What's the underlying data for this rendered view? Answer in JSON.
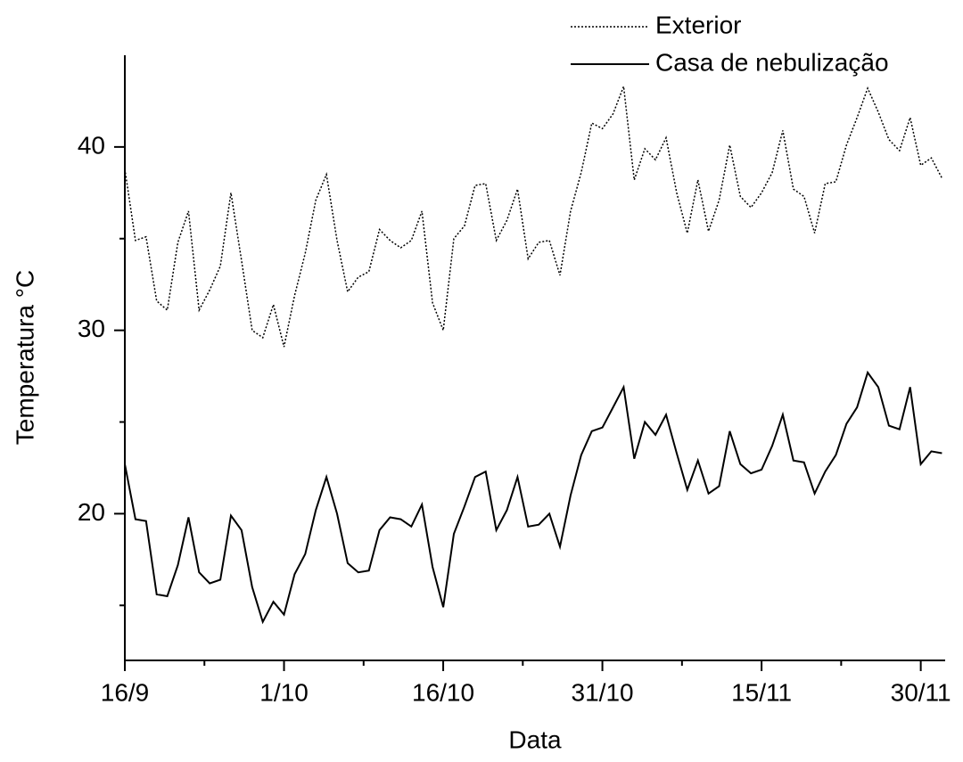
{
  "chart_data": {
    "type": "line",
    "x_label": "Data",
    "y_label": "Temperatura °C",
    "x": [
      0,
      1,
      2,
      3,
      4,
      5,
      6,
      7,
      8,
      9,
      10,
      11,
      12,
      13,
      14,
      15,
      16,
      17,
      18,
      19,
      20,
      21,
      22,
      23,
      24,
      25,
      26,
      27,
      28,
      29,
      30,
      31,
      32,
      33,
      34,
      35,
      36,
      37,
      38,
      39,
      40,
      41,
      42,
      43,
      44,
      45,
      46,
      47,
      48,
      49,
      50,
      51,
      52,
      53,
      54,
      55,
      56,
      57,
      58,
      59,
      60,
      61,
      62,
      63,
      64,
      65,
      66,
      67,
      68,
      69,
      70,
      71,
      72,
      73,
      74,
      75,
      76,
      77
    ],
    "series": [
      {
        "name": "Exterior",
        "color": "#000000",
        "dash": "dotted",
        "values": [
          38.8,
          34.9,
          35.1,
          31.6,
          31.1,
          34.8,
          36.5,
          31.1,
          32.2,
          33.5,
          37.5,
          33.8,
          30.0,
          29.6,
          31.4,
          29.1,
          31.9,
          34.2,
          37.1,
          38.5,
          34.9,
          32.1,
          32.9,
          33.2,
          35.5,
          34.9,
          34.5,
          34.9,
          36.5,
          31.5,
          30.0,
          35.0,
          35.7,
          37.9,
          38.0,
          34.9,
          36.0,
          37.7,
          33.9,
          34.8,
          34.9,
          33.0,
          36.5,
          38.6,
          41.3,
          41.0,
          41.8,
          43.3,
          38.2,
          39.9,
          39.3,
          40.5,
          37.5,
          35.3,
          38.2,
          35.4,
          37.1,
          40.1,
          37.3,
          36.7,
          37.5,
          38.6,
          40.9,
          37.7,
          37.3,
          35.3,
          38.0,
          38.1,
          40.1,
          41.6,
          43.2,
          41.9,
          40.4,
          39.8,
          41.6,
          39.0,
          39.4,
          38.3
        ]
      },
      {
        "name": "Casa de nebulização",
        "color": "#000000",
        "dash": "solid",
        "values": [
          22.7,
          19.7,
          19.6,
          15.6,
          15.5,
          17.2,
          19.8,
          16.8,
          16.2,
          16.4,
          19.9,
          19.1,
          16.0,
          14.1,
          15.2,
          14.5,
          16.7,
          17.8,
          20.2,
          22.0,
          20.0,
          17.3,
          16.8,
          16.9,
          19.1,
          19.8,
          19.7,
          19.3,
          20.5,
          17.1,
          14.9,
          18.9,
          20.4,
          22.0,
          22.3,
          19.1,
          20.2,
          22.0,
          19.3,
          19.4,
          20.0,
          18.2,
          21.0,
          23.2,
          24.5,
          24.7,
          25.8,
          26.9,
          23.0,
          25.0,
          24.3,
          25.4,
          23.3,
          21.3,
          22.9,
          21.1,
          21.5,
          24.5,
          22.7,
          22.2,
          22.4,
          23.7,
          25.4,
          22.9,
          22.8,
          21.1,
          22.3,
          23.2,
          24.9,
          25.8,
          27.7,
          26.9,
          24.8,
          24.6,
          26.9,
          22.7,
          23.4,
          23.3
        ]
      }
    ],
    "xlim": [
      0,
      77.3
    ],
    "xticks": [
      {
        "value": 0,
        "label": "16/9"
      },
      {
        "value": 15,
        "label": "1/10"
      },
      {
        "value": 30,
        "label": "16/10"
      },
      {
        "value": 45,
        "label": "31/10"
      },
      {
        "value": 60,
        "label": "15/11"
      },
      {
        "value": 75,
        "label": "30/11"
      }
    ],
    "xminorticks": [
      7.5,
      22.5,
      37.5,
      52.5,
      67.5
    ],
    "ylim": [
      12,
      45
    ],
    "yticks": [
      20,
      30,
      40
    ],
    "yminorticks": [
      15,
      25,
      35
    ],
    "grid": false,
    "legend": "top-right"
  }
}
